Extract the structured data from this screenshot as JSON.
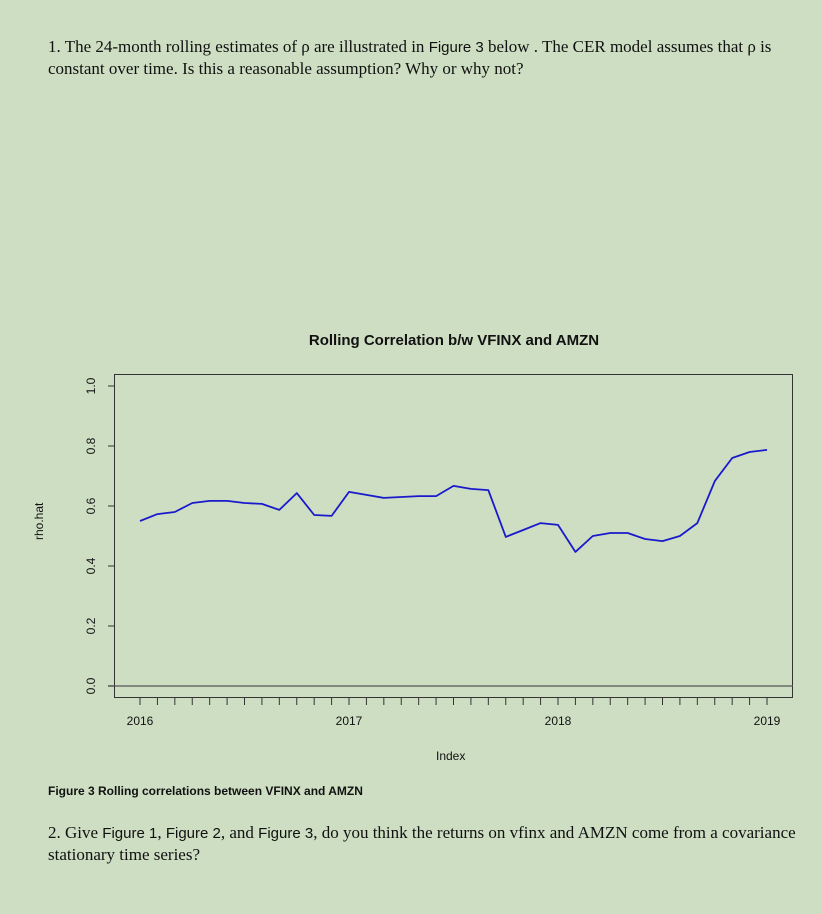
{
  "question1": {
    "prefix": "1.  The 24-month rolling estimates of ρ are illustrated in ",
    "figure_ref": "Figure 3",
    "suffix": "  below . The CER model assumes that ρ is constant over time. Is this a reasonable assumption? Why or why not?"
  },
  "question2": {
    "prefix": "2.  Give ",
    "fig1": "Figure 1",
    "sep1": ", ",
    "fig2": "Figure 2",
    "sep2": ", and ",
    "fig3": "Figure 3",
    "suffix": ", do you think the returns on vfinx and AMZN come from a covariance stationary time series?"
  },
  "caption": "Figure 3  Rolling correlations between VFINX and AMZN",
  "colors": {
    "background": "#cedec3",
    "line": "#1a1acc",
    "axis": "#333333"
  },
  "chart_data": {
    "type": "line",
    "title": "Rolling Correlation b/w VFINX and AMZN",
    "xlabel": "Index",
    "ylabel": "rho.hat",
    "ylim": [
      0.0,
      1.0
    ],
    "yticks": [
      "0.0",
      "0.2",
      "0.4",
      "0.6",
      "0.8",
      "1.0"
    ],
    "xtick_labels": [
      "2016",
      "2017",
      "2018",
      "2019"
    ],
    "grid": false,
    "legend": null,
    "hline": 0.0,
    "x": [
      "2016-01",
      "2016-02",
      "2016-03",
      "2016-04",
      "2016-05",
      "2016-06",
      "2016-07",
      "2016-08",
      "2016-09",
      "2016-10",
      "2016-11",
      "2016-12",
      "2017-01",
      "2017-02",
      "2017-03",
      "2017-04",
      "2017-05",
      "2017-06",
      "2017-07",
      "2017-08",
      "2017-09",
      "2017-10",
      "2017-11",
      "2017-12",
      "2018-01",
      "2018-02",
      "2018-03",
      "2018-04",
      "2018-05",
      "2018-06",
      "2018-07",
      "2018-08",
      "2018-09",
      "2018-10",
      "2018-11",
      "2018-12",
      "2019-01"
    ],
    "series": [
      {
        "name": "rho.hat",
        "values": [
          0.55,
          0.573,
          0.58,
          0.61,
          0.617,
          0.617,
          0.61,
          0.607,
          0.587,
          0.643,
          0.57,
          0.567,
          0.647,
          0.637,
          0.627,
          0.63,
          0.633,
          0.633,
          0.667,
          0.657,
          0.653,
          0.497,
          0.52,
          0.543,
          0.537,
          0.447,
          0.5,
          0.51,
          0.51,
          0.49,
          0.483,
          0.5,
          0.543,
          0.683,
          0.76,
          0.78,
          0.787
        ]
      }
    ]
  }
}
